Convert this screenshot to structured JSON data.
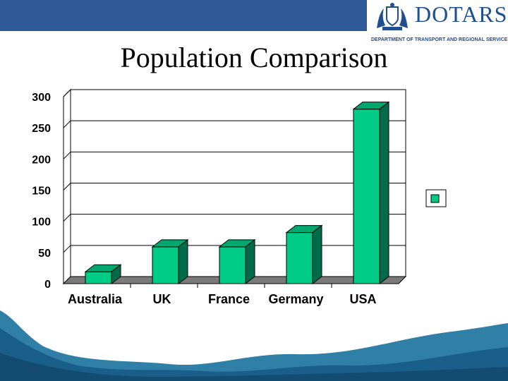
{
  "header": {
    "logo_text": "DOTARS",
    "logo_subtitle": "DEPARTMENT OF TRANSPORT AND REGIONAL SERVICES",
    "crest_label": "AUSTRALIA"
  },
  "chart_data": {
    "type": "bar",
    "title": "Population Comparison",
    "categories": [
      "Australia",
      "UK",
      "France",
      "Germany",
      "USA"
    ],
    "values": [
      19,
      59,
      59,
      82,
      280
    ],
    "ylim": [
      0,
      300
    ],
    "yticks": [
      "0",
      "50",
      "100",
      "150",
      "200",
      "250",
      "300"
    ],
    "grid": true,
    "legend": "right",
    "bar_color": "#00cc88"
  }
}
